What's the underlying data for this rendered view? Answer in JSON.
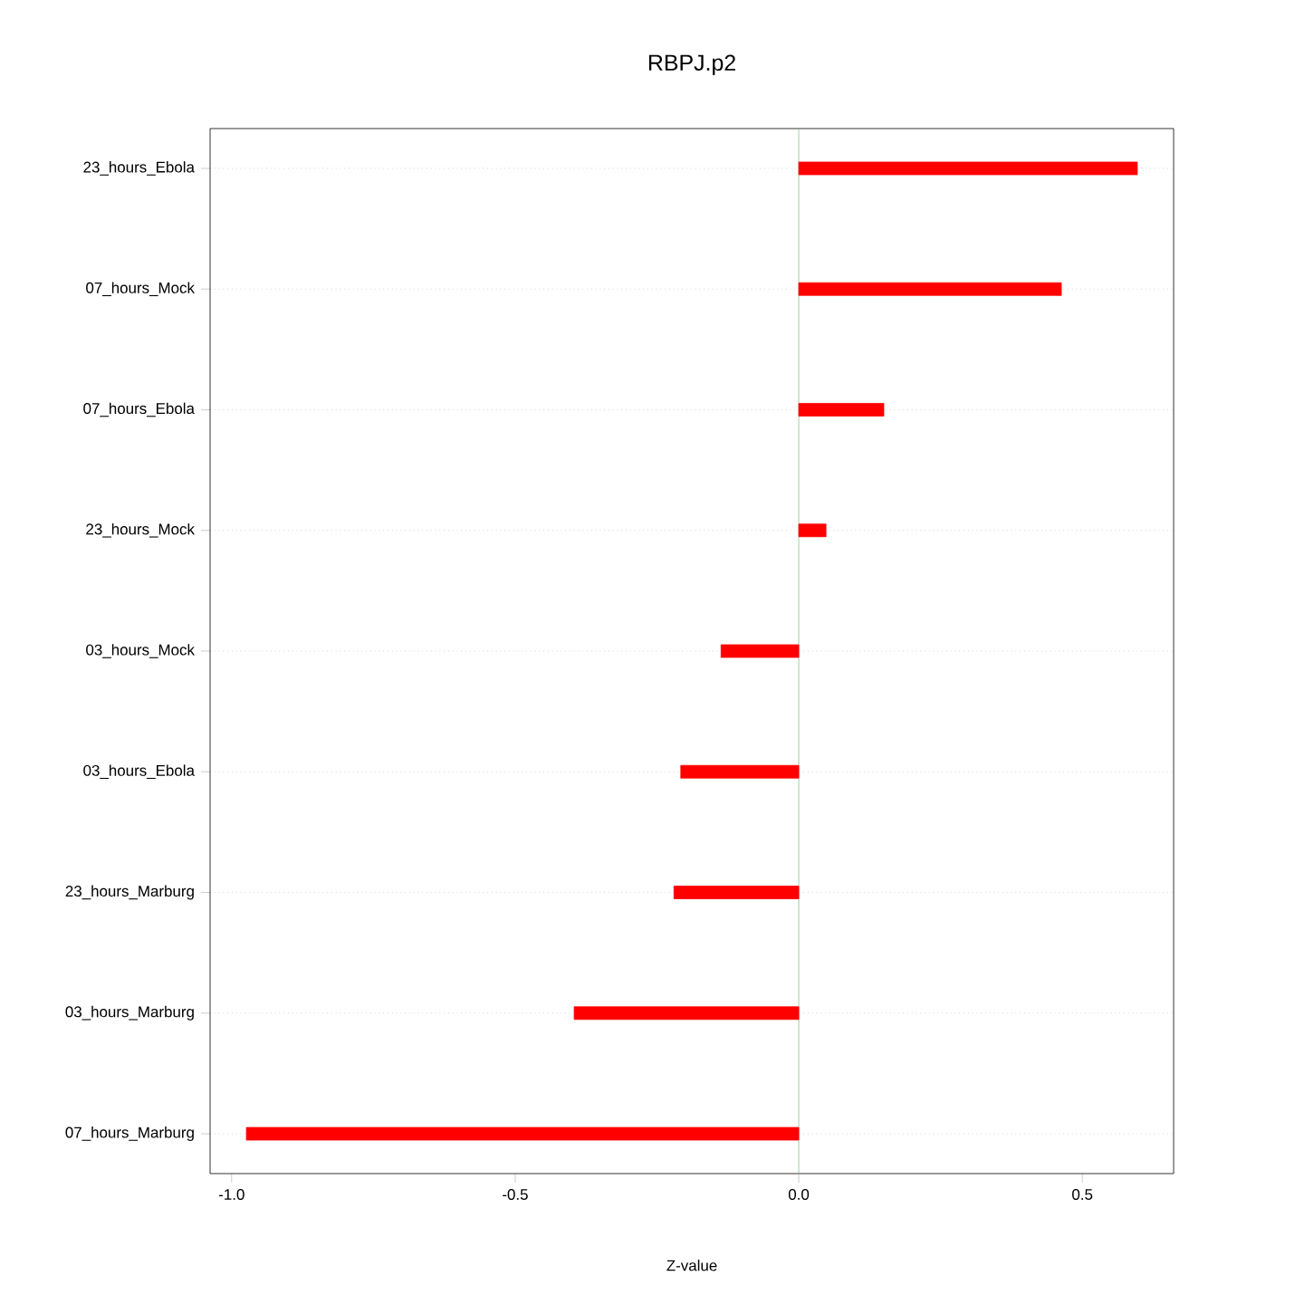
{
  "chart_data": {
    "type": "bar",
    "orientation": "horizontal",
    "title": "RBPJ.p2",
    "xlabel": "Z-value",
    "categories": [
      "23_hours_Ebola",
      "07_hours_Mock",
      "07_hours_Ebola",
      "23_hours_Mock",
      "03_hours_Mock",
      "03_hours_Ebola",
      "23_hours_Marburg",
      "03_hours_Marburg",
      "07_hours_Marburg"
    ],
    "values": [
      0.597,
      0.463,
      0.15,
      0.048,
      -0.137,
      -0.208,
      -0.22,
      -0.396,
      -0.974
    ],
    "color": "#ff0000",
    "xlim": [
      -1.038,
      0.661
    ],
    "xticks": [
      {
        "value": -1.0,
        "label": "-1.0"
      },
      {
        "value": -0.5,
        "label": "-0.5"
      },
      {
        "value": 0.0,
        "label": "0.0"
      },
      {
        "value": 0.5,
        "label": "0.5"
      }
    ],
    "grid": "y",
    "ref_lines": [
      {
        "axis": "x",
        "value": 0,
        "color": "#8fbc8f"
      }
    ]
  }
}
